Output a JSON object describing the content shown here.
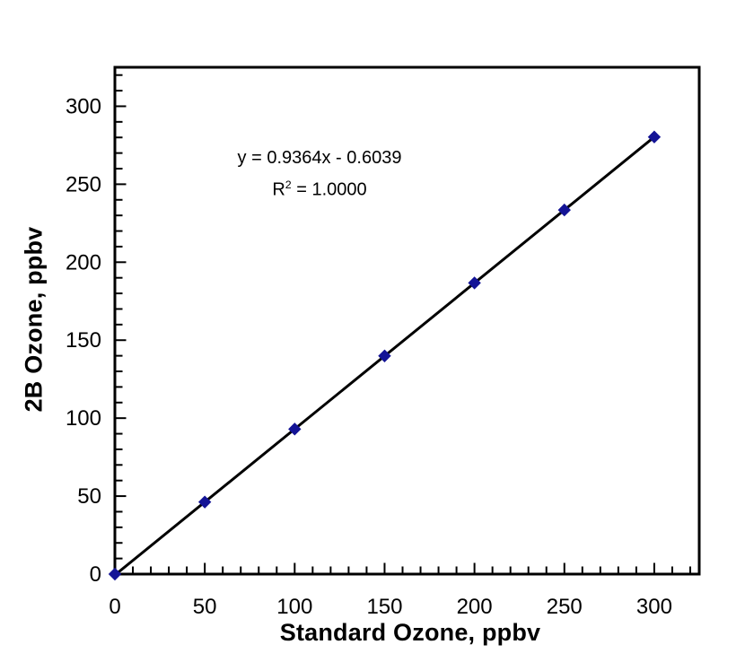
{
  "page": {
    "background_color": "#ffffff",
    "text_color": "#000000"
  },
  "chart_data": {
    "type": "scatter",
    "title": "",
    "xlabel": "Standard Ozone, ppbv",
    "ylabel": "2B Ozone, ppbv",
    "x": [
      0,
      50,
      100,
      150,
      200,
      250,
      300
    ],
    "y": [
      0,
      46.2,
      93.0,
      139.9,
      186.7,
      233.5,
      280.3
    ],
    "xlim": [
      0,
      325
    ],
    "ylim": [
      0,
      325
    ],
    "x_major_ticks": [
      0,
      50,
      100,
      150,
      200,
      250,
      300
    ],
    "y_major_ticks": [
      0,
      50,
      100,
      150,
      200,
      250,
      300
    ],
    "minor_tick_step": 10,
    "grid": false,
    "legend": "none",
    "frame_color": "#000000",
    "marker": {
      "shape": "diamond",
      "color": "#141496",
      "size": 13
    },
    "trendline": {
      "slope": 0.9364,
      "intercept": -0.6039,
      "color": "#000000",
      "equation": "y = 0.9364x - 0.6039",
      "r_squared_value": "1.0000"
    },
    "annotation": {
      "equation": "y = 0.9364x - 0.6039",
      "r_base": "R",
      "r_sup": "2",
      "r_rest": " = 1.0000"
    }
  }
}
